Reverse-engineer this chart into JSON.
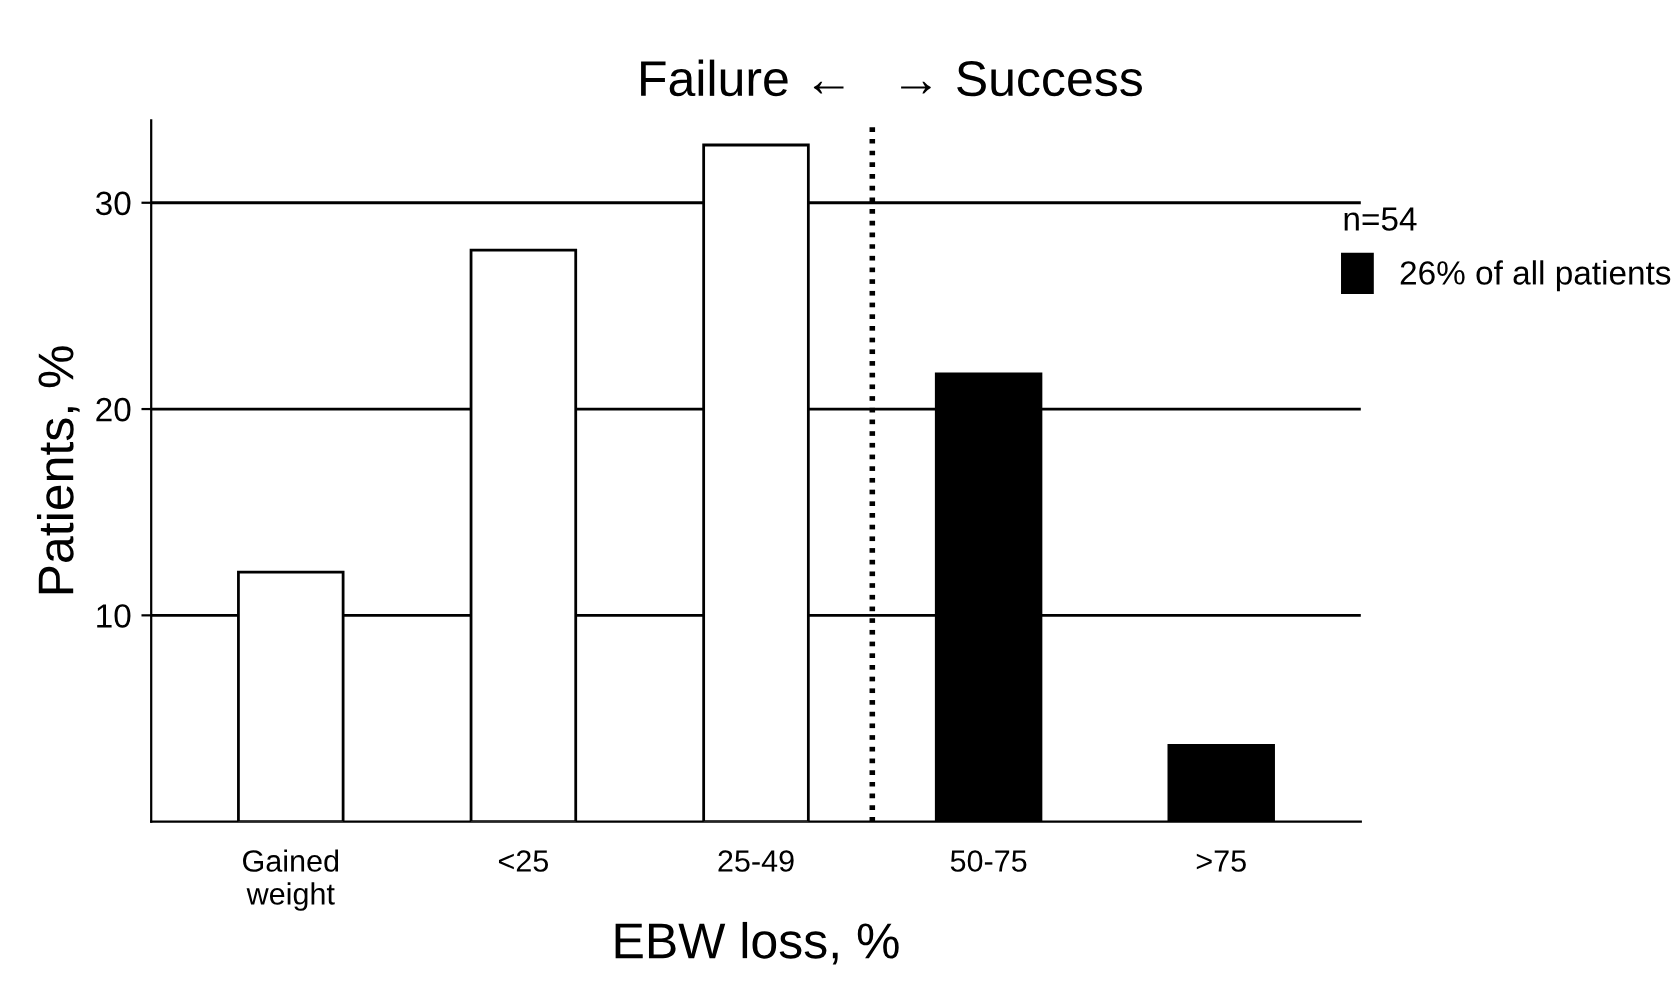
{
  "chart_data": {
    "type": "bar",
    "xlabel": "EBW loss, %",
    "ylabel": "Patients, %",
    "categories": [
      "Gained\nweight",
      "<25",
      "25-49",
      "50-75",
      ">75"
    ],
    "series": [
      {
        "color": "#ffffff",
        "values": [
          12.1,
          27.7,
          32.8,
          null,
          null
        ]
      },
      {
        "name": "26% of all patients",
        "color": "#000000",
        "values": [
          null,
          null,
          null,
          21.7,
          3.7
        ]
      }
    ],
    "ylim": [
      0,
      34
    ],
    "yticks": [
      10,
      20,
      30
    ],
    "grid": "y",
    "legend": "top right",
    "legend_title": "n=54",
    "annotations": [
      "Failure ←",
      "→ Success"
    ]
  }
}
